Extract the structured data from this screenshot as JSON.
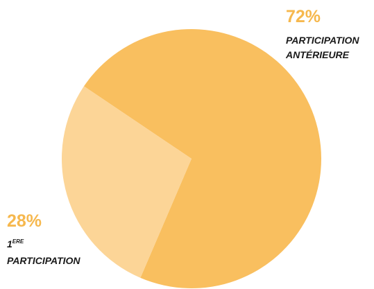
{
  "chart_data": {
    "type": "pie",
    "slices": [
      {
        "value": 72,
        "percent_label": "72%",
        "label_lines": [
          "PARTICIPATION",
          "ANTÉRIEURE"
        ],
        "color": "#f9bf5f"
      },
      {
        "value": 28,
        "percent_label": "28%",
        "label_main": "1",
        "label_superscript": "ERE",
        "label_line2": "PARTICIPATION",
        "color": "#fcd597"
      }
    ]
  }
}
